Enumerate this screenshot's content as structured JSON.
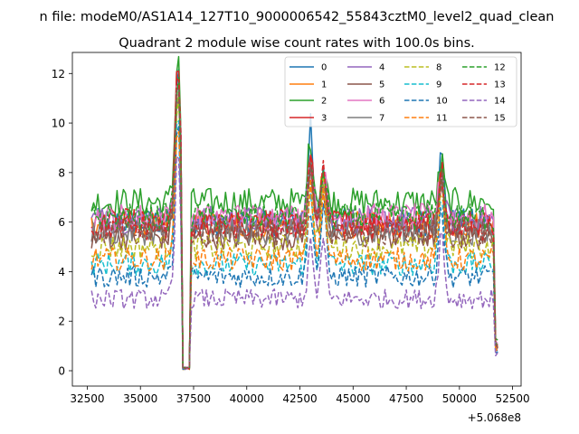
{
  "figure": {
    "suptitle": "n file: modeM0/AS1A14_127T10_9000006542_55843cztM0_level2_quad_clean",
    "title": "Quadrant 2 module wise count rates with 100.0s bins."
  },
  "chart_data": {
    "type": "line",
    "title": "Quadrant 2 module wise count rates with 100.0s bins.",
    "xlabel": "",
    "ylabel": "",
    "x_offset_label": "+5.068e8",
    "x_offset": 506800000,
    "xlim": [
      31800,
      52900
    ],
    "ylim": [
      -0.62,
      12.85
    ],
    "xticks": [
      32500,
      35000,
      37500,
      40000,
      42500,
      45000,
      47500,
      50000,
      52500
    ],
    "xtick_labels": [
      "32500",
      "35000",
      "37500",
      "40000",
      "42500",
      "45000",
      "47500",
      "50000",
      "52500"
    ],
    "yticks": [
      0,
      2,
      4,
      6,
      8,
      10,
      12
    ],
    "ytick_labels": [
      "0",
      "2",
      "4",
      "6",
      "8",
      "10",
      "12"
    ],
    "grid": false,
    "legend_position": "top-right",
    "legend_columns": 4,
    "data_range": [
      32700,
      51800
    ],
    "bin_seconds": 100.0,
    "gap_intervals": [
      [
        36900,
        37400
      ]
    ],
    "series": [
      {
        "name": "0",
        "color": "#1f77b4",
        "dash": "solid",
        "baseline": 6.0,
        "flare_peaks": [
          {
            "x": 36750,
            "y": 11.3
          },
          {
            "x": 43000,
            "y": 9.9
          },
          {
            "x": 43600,
            "y": 7.9
          },
          {
            "x": 49150,
            "y": 8.7
          }
        ]
      },
      {
        "name": "1",
        "color": "#ff7f0e",
        "dash": "solid",
        "baseline": 5.9,
        "flare_peaks": [
          {
            "x": 36750,
            "y": 11.0
          },
          {
            "x": 43000,
            "y": 8.5
          },
          {
            "x": 43600,
            "y": 7.8
          },
          {
            "x": 49150,
            "y": 8.0
          }
        ]
      },
      {
        "name": "2",
        "color": "#2ca02c",
        "dash": "solid",
        "baseline": 6.8,
        "flare_peaks": [
          {
            "x": 36750,
            "y": 12.2
          },
          {
            "x": 43000,
            "y": 9.3
          },
          {
            "x": 43600,
            "y": 8.1
          },
          {
            "x": 49150,
            "y": 8.4
          }
        ]
      },
      {
        "name": "3",
        "color": "#d62728",
        "dash": "solid",
        "baseline": 6.0,
        "flare_peaks": [
          {
            "x": 36750,
            "y": 11.4
          },
          {
            "x": 43000,
            "y": 8.6
          },
          {
            "x": 43600,
            "y": 8.0
          },
          {
            "x": 49150,
            "y": 8.1
          }
        ]
      },
      {
        "name": "4",
        "color": "#9467bd",
        "dash": "solid",
        "baseline": 6.1,
        "flare_peaks": [
          {
            "x": 36750,
            "y": 11.0
          },
          {
            "x": 43000,
            "y": 8.4
          },
          {
            "x": 43600,
            "y": 7.8
          },
          {
            "x": 49150,
            "y": 7.8
          }
        ]
      },
      {
        "name": "5",
        "color": "#8c564b",
        "dash": "solid",
        "baseline": 5.4,
        "flare_peaks": [
          {
            "x": 36750,
            "y": 10.4
          },
          {
            "x": 43000,
            "y": 7.9
          },
          {
            "x": 43600,
            "y": 7.4
          },
          {
            "x": 49150,
            "y": 7.6
          }
        ]
      },
      {
        "name": "6",
        "color": "#e377c2",
        "dash": "solid",
        "baseline": 6.2,
        "flare_peaks": [
          {
            "x": 36750,
            "y": 11.2
          },
          {
            "x": 43000,
            "y": 8.6
          },
          {
            "x": 43600,
            "y": 8.0
          },
          {
            "x": 49150,
            "y": 8.0
          }
        ]
      },
      {
        "name": "7",
        "color": "#7f7f7f",
        "dash": "solid",
        "baseline": 5.6,
        "flare_peaks": [
          {
            "x": 36750,
            "y": 10.6
          },
          {
            "x": 43000,
            "y": 8.1
          },
          {
            "x": 43600,
            "y": 7.6
          },
          {
            "x": 49150,
            "y": 7.7
          }
        ]
      },
      {
        "name": "8",
        "color": "#bcbd22",
        "dash": "dashed",
        "baseline": 5.0,
        "flare_peaks": [
          {
            "x": 36750,
            "y": 10.2
          },
          {
            "x": 43000,
            "y": 7.8
          },
          {
            "x": 43600,
            "y": 7.4
          },
          {
            "x": 49150,
            "y": 7.5
          }
        ]
      },
      {
        "name": "9",
        "color": "#17becf",
        "dash": "dashed",
        "baseline": 4.3,
        "flare_peaks": [
          {
            "x": 36750,
            "y": 9.6
          },
          {
            "x": 43000,
            "y": 7.1
          },
          {
            "x": 43600,
            "y": 6.8
          },
          {
            "x": 49150,
            "y": 7.0
          }
        ]
      },
      {
        "name": "10",
        "color": "#1f77b4",
        "dash": "dashed",
        "baseline": 3.8,
        "flare_peaks": [
          {
            "x": 36750,
            "y": 9.0
          },
          {
            "x": 43000,
            "y": 6.7
          },
          {
            "x": 43600,
            "y": 6.5
          },
          {
            "x": 49150,
            "y": 6.7
          }
        ]
      },
      {
        "name": "11",
        "color": "#ff7f0e",
        "dash": "dashed",
        "baseline": 4.5,
        "flare_peaks": [
          {
            "x": 36750,
            "y": 9.6
          },
          {
            "x": 43000,
            "y": 7.3
          },
          {
            "x": 43600,
            "y": 7.0
          },
          {
            "x": 49150,
            "y": 7.2
          }
        ]
      },
      {
        "name": "12",
        "color": "#2ca02c",
        "dash": "dashed",
        "baseline": 6.2,
        "flare_peaks": [
          {
            "x": 36750,
            "y": 11.0
          },
          {
            "x": 43000,
            "y": 8.6
          },
          {
            "x": 43600,
            "y": 8.0
          },
          {
            "x": 49150,
            "y": 8.0
          }
        ]
      },
      {
        "name": "13",
        "color": "#d62728",
        "dash": "dashed",
        "baseline": 5.8,
        "flare_peaks": [
          {
            "x": 36750,
            "y": 11.6
          },
          {
            "x": 43000,
            "y": 8.5
          },
          {
            "x": 43600,
            "y": 8.3
          },
          {
            "x": 49150,
            "y": 8.0
          }
        ]
      },
      {
        "name": "14",
        "color": "#9467bd",
        "dash": "dashed",
        "baseline": 2.9,
        "flare_peaks": [
          {
            "x": 36750,
            "y": 8.1
          },
          {
            "x": 43000,
            "y": 5.0
          },
          {
            "x": 43600,
            "y": 5.2
          },
          {
            "x": 49150,
            "y": 5.6
          }
        ]
      },
      {
        "name": "15",
        "color": "#8c564b",
        "dash": "dashed",
        "baseline": 5.6,
        "flare_peaks": [
          {
            "x": 36750,
            "y": 10.8
          },
          {
            "x": 43000,
            "y": 8.1
          },
          {
            "x": 43600,
            "y": 7.6
          },
          {
            "x": 49150,
            "y": 7.8
          }
        ]
      }
    ]
  }
}
